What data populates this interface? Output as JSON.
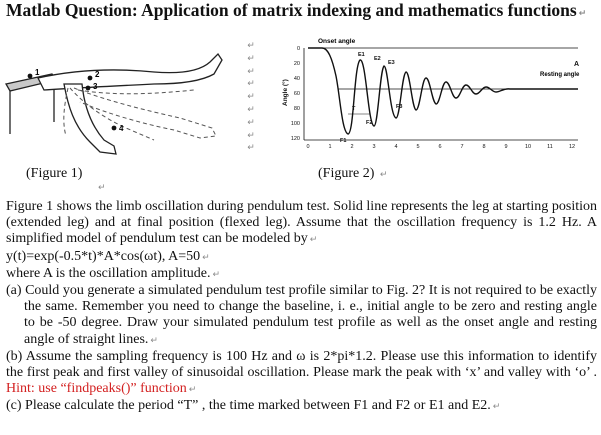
{
  "title": "Matlab Question: Application of matrix indexing and mathematics functions",
  "return_mark": "↵",
  "figure1": {
    "caption": "(Figure 1)",
    "labels": [
      "1",
      "2",
      "3",
      "4"
    ]
  },
  "figure2": {
    "caption": "(Figure 2)",
    "onset_label": "Onset angle",
    "resting_label": "Resting angle",
    "y_axis_label": "Angle (°)",
    "y_ticks": [
      "0",
      "20",
      "40",
      "60",
      "80",
      "100",
      "120"
    ],
    "x_ticks": [
      "0",
      "1",
      "2",
      "3",
      "4",
      "5",
      "6",
      "7",
      "8",
      "9",
      "10",
      "11",
      "12"
    ],
    "annotations": {
      "A": "A",
      "E1": "E1",
      "E2": "E2",
      "E3": "E3",
      "F1": "F1",
      "F2": "F2",
      "F3": "F3",
      "T": "T"
    }
  },
  "paragraphs": {
    "p1": "Figure 1 shows the limb oscillation during pendulum test. Solid line represents the leg at starting position (extended leg) and at final position (flexed leg). Assume that the oscillation frequency is 1.2 Hz. A simplified model of pendulum test can be modeled by",
    "p2": "y(t)=exp(-0.5*t)*A*cos(ωt), A=50",
    "p3": "where A is the oscillation amplitude.",
    "qa": "(a) Could you generate a simulated pendulum test profile similar to Fig. 2? It is not required to be exactly the same. Remember you need to change the baseline, i. e., initial angle to be zero and resting angle to be -50 degree. Draw your simulated pendulum test profile as well as the onset angle and resting angle of straight lines.",
    "qb_main": "(b) Assume the sampling frequency is 100 Hz and ω is 2*pi*1.2. Please use this information to identify the first peak and first valley of sinusoidal oscillation. Please mark the peak with ‘x’ and valley with ‘o’ . ",
    "qb_hint": "Hint: use “findpeaks()” function",
    "qc": "(c) Please calculate the period “T” , the time marked between F1 and F2 or E1 and E2."
  }
}
